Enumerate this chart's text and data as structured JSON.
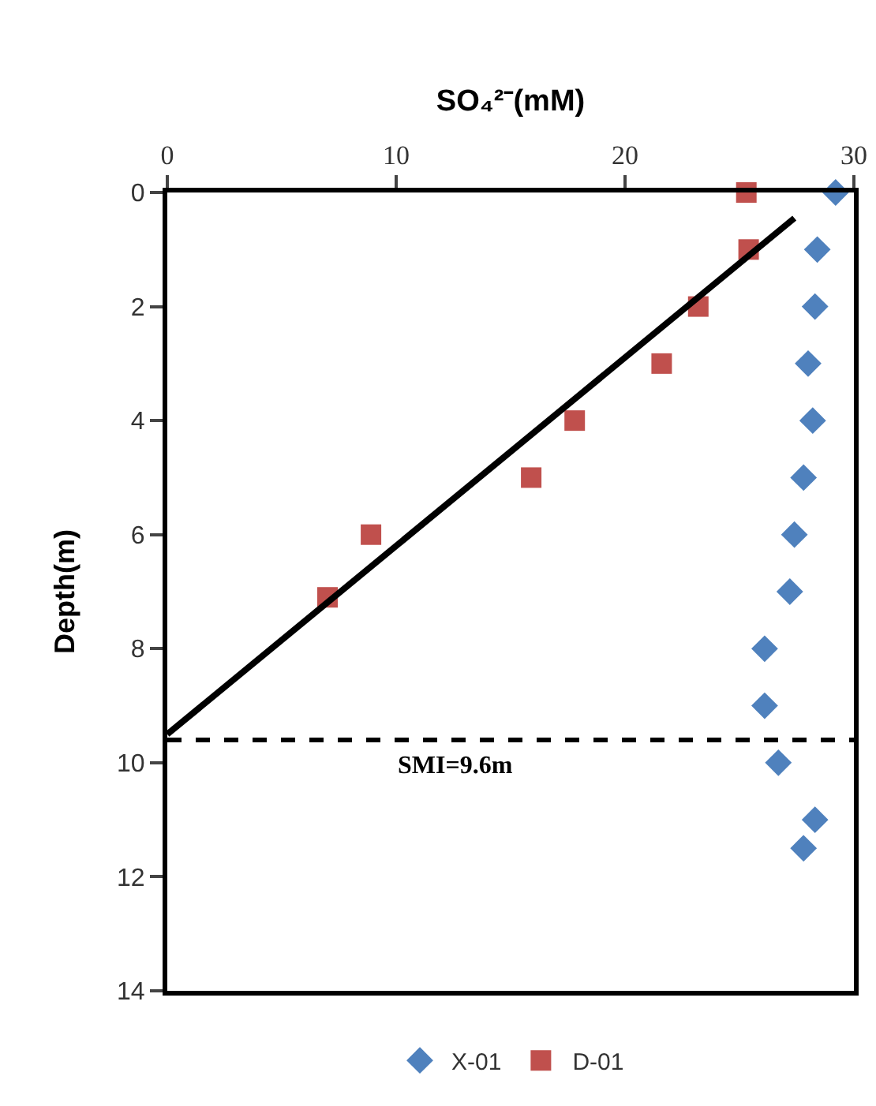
{
  "chart_data": {
    "type": "scatter",
    "xlabel": "SO₄²⁻(mM)",
    "ylabel": "Depth(m)",
    "xlim": [
      0,
      30
    ],
    "xticks": [
      0,
      10,
      20,
      30
    ],
    "ylim": [
      14,
      0
    ],
    "yticks": [
      0,
      2,
      4,
      6,
      8,
      10,
      12,
      14
    ],
    "grid": false,
    "legend": "bottom",
    "series": [
      {
        "name": "X-01",
        "color": "#4f81bd",
        "marker": "diamond",
        "x": [
          29.2,
          28.4,
          28.3,
          28.0,
          28.2,
          27.8,
          27.4,
          27.2,
          26.1,
          26.1,
          26.7,
          28.3,
          27.8
        ],
        "values": [
          0,
          1,
          2,
          3,
          4,
          5,
          6,
          7,
          8,
          9,
          10,
          11,
          11.5
        ]
      },
      {
        "name": "D-01",
        "color": "#c0504d",
        "marker": "square",
        "x": [
          25.3,
          25.4,
          23.2,
          21.6,
          17.8,
          15.9,
          8.9,
          7.0
        ],
        "values": [
          0,
          1,
          2,
          3,
          4,
          5,
          6,
          7.1
        ]
      },
      {
        "type": "line",
        "color": "#000000",
        "marker": "none",
        "line_style": "solid",
        "x": [
          27.4,
          0
        ],
        "values": [
          0.45,
          9.5
        ]
      }
    ],
    "ref_lines": [
      {
        "axis": "y",
        "value": 9.6,
        "label": "SMI=9.6m",
        "color": "#000000",
        "line_style": "dashed"
      }
    ]
  }
}
